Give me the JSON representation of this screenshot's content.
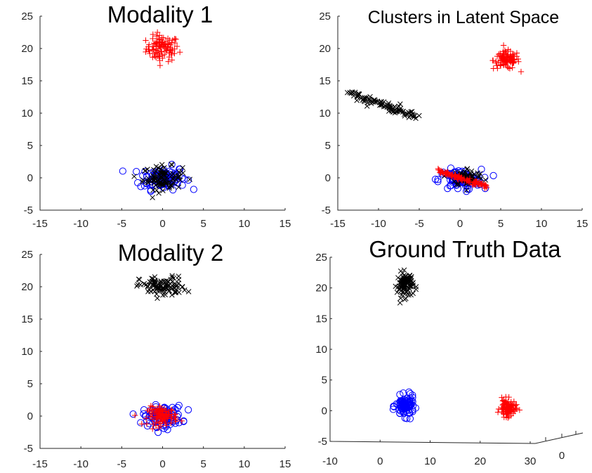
{
  "chart_data": [
    {
      "id": "modality-1",
      "type": "scatter",
      "title": "Modality 1",
      "xlabel": "",
      "ylabel": "",
      "xlim": [
        -15,
        15
      ],
      "ylim": [
        -5,
        25
      ],
      "xticks": [
        "-15",
        "-10",
        "-5",
        "0",
        "5",
        "10",
        "15"
      ],
      "yticks": [
        "-5",
        "0",
        "5",
        "10",
        "15",
        "20",
        "25"
      ],
      "grid": false,
      "series": [
        {
          "marker": "plus",
          "color": "#ff0000",
          "center": [
            0,
            20
          ],
          "spread": [
            1.0,
            1.0
          ],
          "count": 100
        },
        {
          "marker": "circle",
          "color": "#0000ff",
          "center": [
            0,
            0
          ],
          "spread": [
            1.4,
            0.9
          ],
          "count": 100
        },
        {
          "marker": "cross",
          "color": "#000000",
          "center": [
            0,
            0
          ],
          "spread": [
            1.2,
            0.9
          ],
          "count": 100
        }
      ]
    },
    {
      "id": "latent-space",
      "type": "scatter",
      "title": "Clusters in Latent Space",
      "xlabel": "",
      "ylabel": "",
      "xlim": [
        -15,
        15
      ],
      "ylim": [
        -5,
        25
      ],
      "xticks": [
        "-15",
        "-10",
        "-5",
        "0",
        "5",
        "10",
        "15"
      ],
      "yticks": [
        "-5",
        "0",
        "5",
        "10",
        "15",
        "20",
        "25"
      ],
      "grid": false,
      "series": [
        {
          "marker": "plus",
          "color": "#ff0000",
          "center": [
            5.7,
            18.2
          ],
          "spread": [
            0.8,
            0.7
          ],
          "count": 100
        },
        {
          "marker": "cross",
          "color": "#000000",
          "center": [
            -10,
            11.7
          ],
          "line": {
            "from": [
              -13.5,
              13.1
            ],
            "to": [
              -5.5,
              9.5
            ]
          },
          "spread": [
            0.3,
            0.3
          ],
          "count": 100
        },
        {
          "marker": "circle",
          "color": "#0000ff",
          "center": [
            0,
            -0.3
          ],
          "spread": [
            1.3,
            0.8
          ],
          "count": 100
        },
        {
          "marker": "cross",
          "color": "#000000",
          "center": [
            1,
            0.1
          ],
          "spread": [
            1.0,
            0.7
          ],
          "count": 60
        },
        {
          "marker": "plus",
          "color": "#ff0000",
          "center": [
            0,
            0
          ],
          "line": {
            "from": [
              -3,
              1.2
            ],
            "to": [
              3.2,
              -1.3
            ]
          },
          "spread": [
            0.15,
            0.15
          ],
          "count": 100
        }
      ]
    },
    {
      "id": "modality-2",
      "type": "scatter",
      "title": "Modality 2",
      "xlabel": "",
      "ylabel": "",
      "xlim": [
        -15,
        15
      ],
      "ylim": [
        -5,
        25
      ],
      "xticks": [
        "-15",
        "-10",
        "-5",
        "0",
        "5",
        "10",
        "15"
      ],
      "yticks": [
        "-5",
        "0",
        "5",
        "10",
        "15",
        "20",
        "25"
      ],
      "grid": false,
      "series": [
        {
          "marker": "cross",
          "color": "#000000",
          "center": [
            0,
            20
          ],
          "spread": [
            1.4,
            0.8
          ],
          "count": 100
        },
        {
          "marker": "circle",
          "color": "#0000ff",
          "center": [
            0,
            0
          ],
          "spread": [
            1.2,
            0.8
          ],
          "count": 100
        },
        {
          "marker": "plus",
          "color": "#ff0000",
          "center": [
            0,
            0
          ],
          "spread": [
            0.9,
            0.7
          ],
          "count": 100
        }
      ]
    },
    {
      "id": "ground-truth",
      "type": "scatter",
      "title": "Ground Truth Data",
      "xlabel": "",
      "ylabel": "",
      "xlim": [
        -10,
        30
      ],
      "ylim": [
        -5,
        25
      ],
      "xticks": [
        "-10",
        "0",
        "10",
        "20",
        "30"
      ],
      "yticks": [
        "-5",
        "0",
        "5",
        "10",
        "15",
        "20",
        "25"
      ],
      "zticks": [
        "0"
      ],
      "grid": false,
      "series": [
        {
          "marker": "cross",
          "color": "#000000",
          "center": [
            5,
            20.5
          ],
          "spread": [
            0.8,
            1.0
          ],
          "count": 100
        },
        {
          "marker": "circle",
          "color": "#0000ff",
          "center": [
            5,
            0.7
          ],
          "spread": [
            0.9,
            0.8
          ],
          "count": 100
        },
        {
          "marker": "plus",
          "color": "#ff0000",
          "center": [
            25.5,
            0.4
          ],
          "spread": [
            0.8,
            0.7
          ],
          "count": 100
        }
      ]
    }
  ]
}
